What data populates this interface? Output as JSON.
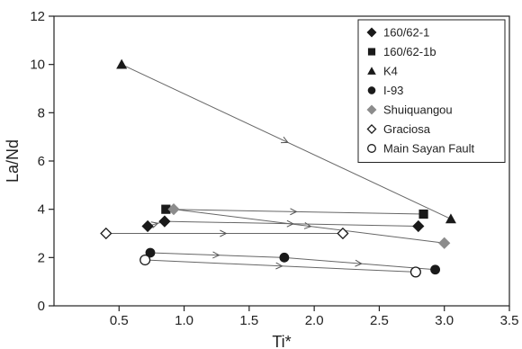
{
  "chart_data": {
    "type": "scatter",
    "xlabel": "Ti*",
    "ylabel": "La/Nd",
    "xlim": [
      0,
      3.5
    ],
    "ylim": [
      0,
      12
    ],
    "xticks": [
      "0.5",
      "1.0",
      "1.5",
      "2.0",
      "2.5",
      "3.0",
      "3.5"
    ],
    "yticks": [
      "0",
      "2",
      "4",
      "6",
      "8",
      "10",
      "12"
    ],
    "grid": false,
    "legend_position": "top-right",
    "series": [
      {
        "name": "160/62-1",
        "marker": "diamond-filled",
        "color": "#1a1a1a",
        "points": [
          [
            0.72,
            3.3
          ],
          [
            0.85,
            3.5
          ],
          [
            2.8,
            3.3
          ]
        ]
      },
      {
        "name": "160/62-1b",
        "marker": "square-filled",
        "color": "#1a1a1a",
        "points": [
          [
            0.86,
            4.0
          ],
          [
            2.84,
            3.8
          ]
        ]
      },
      {
        "name": "K4",
        "marker": "triangle-filled",
        "color": "#1a1a1a",
        "points": [
          [
            0.52,
            10.0
          ],
          [
            3.05,
            3.6
          ]
        ]
      },
      {
        "name": "I-93",
        "marker": "circle-filled",
        "color": "#1a1a1a",
        "points": [
          [
            0.74,
            2.2
          ],
          [
            1.77,
            2.0
          ],
          [
            2.93,
            1.5
          ]
        ]
      },
      {
        "name": "Shuiquangou",
        "marker": "diamond-filled",
        "color": "#8c8c8c",
        "points": [
          [
            0.92,
            4.0
          ],
          [
            3.0,
            2.6
          ]
        ]
      },
      {
        "name": "Graciosa",
        "marker": "diamond-open",
        "color": "#1a1a1a",
        "points": [
          [
            0.4,
            3.0
          ],
          [
            2.22,
            3.0
          ]
        ]
      },
      {
        "name": "Main Sayan Fault",
        "marker": "circle-open",
        "color": "#1a1a1a",
        "points": [
          [
            0.7,
            1.9
          ],
          [
            2.78,
            1.4
          ]
        ]
      }
    ],
    "trend_lines": [
      {
        "from": [
          0.52,
          10.0
        ],
        "to": [
          3.05,
          3.6
        ]
      },
      {
        "from": [
          0.86,
          4.0
        ],
        "to": [
          2.84,
          3.8
        ]
      },
      {
        "from": [
          0.92,
          4.0
        ],
        "to": [
          3.0,
          2.6
        ]
      },
      {
        "from": [
          0.85,
          3.5
        ],
        "to": [
          2.8,
          3.3
        ]
      },
      {
        "from": [
          0.72,
          3.3
        ],
        "to": [
          0.85,
          3.5
        ]
      },
      {
        "from": [
          0.4,
          3.0
        ],
        "to": [
          2.22,
          3.0
        ]
      },
      {
        "from": [
          0.74,
          2.2
        ],
        "to": [
          1.77,
          2.0
        ]
      },
      {
        "from": [
          1.77,
          2.0
        ],
        "to": [
          2.93,
          1.5
        ]
      },
      {
        "from": [
          0.7,
          1.9
        ],
        "to": [
          2.78,
          1.4
        ]
      }
    ]
  }
}
